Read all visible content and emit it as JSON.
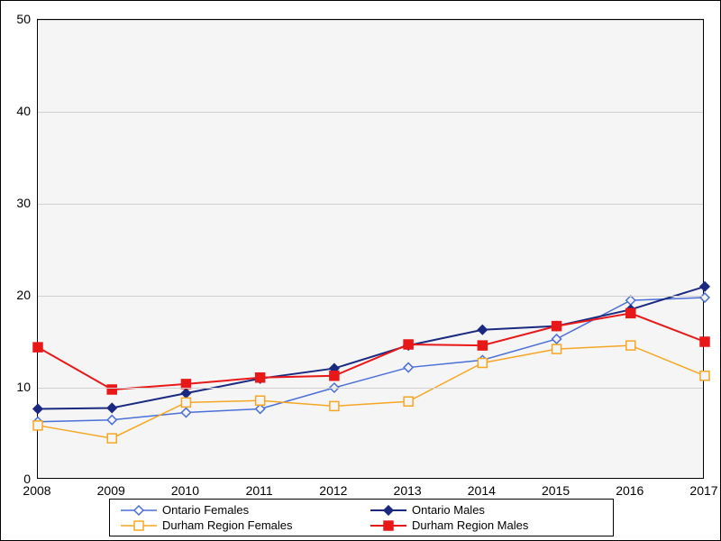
{
  "chart": {
    "type": "line",
    "background_color": "#ffffff",
    "plot_background_color": "#f5f5f5",
    "grid_color": "#d0d0d0",
    "border_color": "#000000",
    "xlim": [
      2008,
      2017
    ],
    "ylim": [
      0,
      50
    ],
    "ytick_step": 10,
    "xtick_step": 1,
    "tick_fontsize": 14,
    "x_values": [
      2008,
      2009,
      2010,
      2011,
      2012,
      2013,
      2014,
      2015,
      2016,
      2017
    ],
    "series": [
      {
        "name": "Ontario Females",
        "color": "#4a6fd8",
        "marker": "diamond",
        "marker_fill": "none",
        "line_width": 1.5,
        "values": [
          6.3,
          6.5,
          7.3,
          7.7,
          10.0,
          12.2,
          13.0,
          15.3,
          19.5,
          19.8
        ]
      },
      {
        "name": "Ontario Males",
        "color": "#1a2a80",
        "marker": "diamond",
        "marker_fill": "solid",
        "line_width": 2,
        "values": [
          7.7,
          7.8,
          9.4,
          11.0,
          12.1,
          14.6,
          16.3,
          16.7,
          18.5,
          21.0
        ]
      },
      {
        "name": "Durham Region Females",
        "color": "#f5a623",
        "marker": "square",
        "marker_fill": "none",
        "line_width": 1.5,
        "values": [
          5.9,
          4.5,
          8.4,
          8.6,
          8.0,
          8.5,
          12.7,
          14.2,
          14.6,
          11.3
        ]
      },
      {
        "name": "Durham Region Males",
        "color": "#e81818",
        "marker": "square",
        "marker_fill": "solid",
        "line_width": 2,
        "values": [
          14.4,
          9.8,
          10.4,
          11.1,
          11.3,
          14.7,
          14.6,
          16.7,
          18.1,
          15.0
        ]
      }
    ],
    "legend": {
      "items": [
        "Ontario Females",
        "Ontario Males",
        "Durham Region Females",
        "Durham Region Males"
      ],
      "fontsize": 13
    }
  }
}
